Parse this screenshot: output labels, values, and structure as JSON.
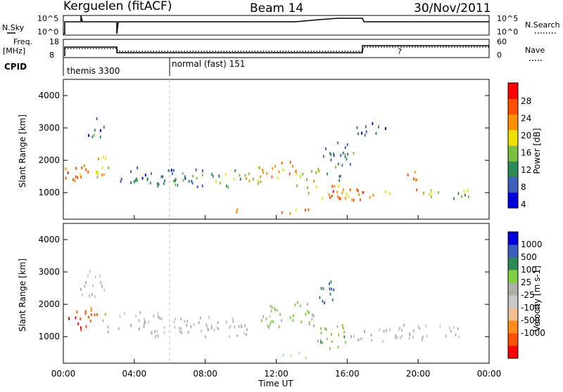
{
  "header": {
    "station": "Kerguelen (fitACF)",
    "beam": "Beam 14",
    "date": "30/Nov/2011"
  },
  "top_panels": {
    "nsky_label": "N.Sky",
    "nsky_ticks": [
      "10^5",
      "10^0"
    ],
    "nsearch_label": "N.Search",
    "nsearch_ticks": [
      "10^5",
      "10^0"
    ],
    "freq_label_1": "Freq.",
    "freq_label_2": "[MHz]",
    "freq_ticks": [
      "18",
      "8"
    ],
    "nave_label": "Nave",
    "nave_ticks": [
      "60",
      "0"
    ],
    "cpid_label": "CPID",
    "cpid_modes": [
      {
        "name": "themis 3300",
        "start_hour": 0
      },
      {
        "name": "normal (fast) 151",
        "start_hour": 6
      }
    ],
    "question_mark": "?"
  },
  "x_axis": {
    "label": "Time UT",
    "ticks": [
      "00:00",
      "04:00",
      "08:00",
      "12:00",
      "16:00",
      "20:00",
      "00:00"
    ],
    "hours": [
      0,
      4,
      8,
      12,
      16,
      20,
      24
    ]
  },
  "chart_data": [
    {
      "type": "heatmap",
      "title": "",
      "xlabel": "Time UT",
      "ylabel": "Slant Range [km]",
      "xlim": [
        0,
        24
      ],
      "ylim": [
        180,
        4500
      ],
      "yticks": [
        1000,
        2000,
        3000,
        4000
      ],
      "colorbar_label": "Power [dB]",
      "colorbar_ticks": [
        "28",
        "24",
        "20",
        "16",
        "12",
        "8",
        "4"
      ],
      "colorbar_range": [
        0,
        30
      ],
      "colors": [
        "#0000dd",
        "#3b5fbf",
        "#2e8b57",
        "#7fbf3f",
        "#f0e000",
        "#ff9000",
        "#ff5000",
        "#ff0000"
      ],
      "blobs": [
        {
          "t": 0.9,
          "r": 1650,
          "dt": 0.9,
          "dr": 350,
          "v": 22
        },
        {
          "t": 2.0,
          "r": 1800,
          "dt": 0.6,
          "dr": 400,
          "v": 18
        },
        {
          "t": 3.8,
          "r": 1600,
          "dt": 1.2,
          "dr": 250,
          "v": 8
        },
        {
          "t": 5.5,
          "r": 1500,
          "dt": 1.5,
          "dr": 300,
          "v": 7
        },
        {
          "t": 7.5,
          "r": 1450,
          "dt": 1.5,
          "dr": 300,
          "v": 9
        },
        {
          "t": 9.5,
          "r": 1500,
          "dt": 1.2,
          "dr": 300,
          "v": 12
        },
        {
          "t": 10.8,
          "r": 1600,
          "dt": 0.7,
          "dr": 350,
          "v": 18
        },
        {
          "t": 12.4,
          "r": 1700,
          "dt": 0.8,
          "dr": 350,
          "v": 22
        },
        {
          "t": 13.8,
          "r": 1400,
          "dt": 0.8,
          "dr": 500,
          "v": 16
        },
        {
          "t": 15.0,
          "r": 1050,
          "dt": 0.8,
          "dr": 300,
          "v": 22
        },
        {
          "t": 16.4,
          "r": 1050,
          "dt": 0.8,
          "dr": 300,
          "v": 22
        },
        {
          "t": 17.8,
          "r": 950,
          "dt": 0.7,
          "dr": 150,
          "v": 18
        },
        {
          "t": 19.7,
          "r": 1400,
          "dt": 0.5,
          "dr": 300,
          "v": 22
        },
        {
          "t": 21.0,
          "r": 1000,
          "dt": 0.8,
          "dr": 200,
          "v": 16
        },
        {
          "t": 22.6,
          "r": 950,
          "dt": 0.7,
          "dr": 200,
          "v": 12
        },
        {
          "t": 10.0,
          "r": 500,
          "dt": 0.6,
          "dr": 80,
          "v": 18
        },
        {
          "t": 12.8,
          "r": 450,
          "dt": 1.2,
          "dr": 120,
          "v": 22
        },
        {
          "t": 15.5,
          "r": 2000,
          "dt": 1.0,
          "dr": 600,
          "v": 8
        },
        {
          "t": 1.8,
          "r": 2900,
          "dt": 0.5,
          "dr": 500,
          "v": 8
        },
        {
          "t": 17.2,
          "r": 3000,
          "dt": 1.2,
          "dr": 200,
          "v": 6
        }
      ]
    },
    {
      "type": "heatmap",
      "title": "",
      "xlabel": "Time UT",
      "ylabel": "Slant Range [km]",
      "xlim": [
        0,
        24
      ],
      "ylim": [
        180,
        4500
      ],
      "yticks": [
        1000,
        2000,
        3000,
        4000
      ],
      "colorbar_label": "Velocity [m s-1]",
      "colorbar_ticks": [
        "1000",
        "500",
        "100",
        "25",
        "-25",
        "-100",
        "-500",
        "-1000"
      ],
      "colorbar_range": [
        -1200,
        1200
      ],
      "colors": [
        "#ff0000",
        "#ff5000",
        "#ff8c1a",
        "#f5c090",
        "#c8c8c8",
        "#b0b0a8",
        "#7fcf3f",
        "#2e8b57",
        "#3b5fbf",
        "#0000dd"
      ],
      "blobs": [
        {
          "t": 0.9,
          "r": 1600,
          "dt": 0.9,
          "dr": 350,
          "v": -900
        },
        {
          "t": 2.0,
          "r": 1800,
          "dt": 0.5,
          "dr": 300,
          "v": -700
        },
        {
          "t": 4.5,
          "r": 1400,
          "dt": 2.5,
          "dr": 400,
          "v": 0
        },
        {
          "t": 8.5,
          "r": 1350,
          "dt": 2.5,
          "dr": 350,
          "v": 0
        },
        {
          "t": 11.5,
          "r": 1600,
          "dt": 1.0,
          "dr": 400,
          "v": 200
        },
        {
          "t": 13.5,
          "r": 1700,
          "dt": 0.8,
          "dr": 500,
          "v": 300
        },
        {
          "t": 15.2,
          "r": 1050,
          "dt": 1.2,
          "dr": 400,
          "v": 300
        },
        {
          "t": 17.5,
          "r": 1100,
          "dt": 1.5,
          "dr": 250,
          "v": 0
        },
        {
          "t": 20.5,
          "r": 1200,
          "dt": 2.5,
          "dr": 250,
          "v": 0
        },
        {
          "t": 12.8,
          "r": 450,
          "dt": 1.2,
          "dr": 100,
          "v": -400
        },
        {
          "t": 1.6,
          "r": 2600,
          "dt": 0.7,
          "dr": 500,
          "v": -60
        },
        {
          "t": 14.8,
          "r": 2400,
          "dt": 0.6,
          "dr": 400,
          "v": 700
        }
      ]
    }
  ]
}
